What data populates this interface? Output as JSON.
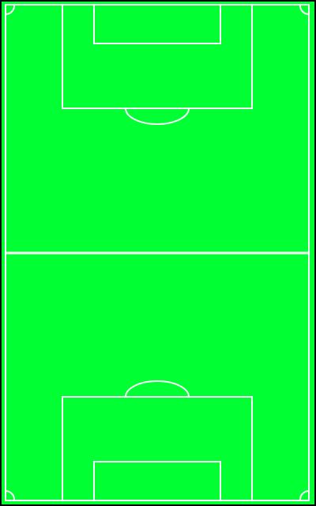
{
  "diagram": {
    "type": "soccer-pitch",
    "orientation": "vertical",
    "colors": {
      "background": "#000000",
      "grass": "#00ff33",
      "lines": "#ffffff"
    },
    "markings": [
      "touchlines",
      "goal-lines",
      "halfway-line",
      "penalty-area-top",
      "goal-area-top",
      "penalty-arc-top",
      "penalty-area-bottom",
      "goal-area-bottom",
      "penalty-arc-bottom",
      "corner-arcs"
    ]
  }
}
